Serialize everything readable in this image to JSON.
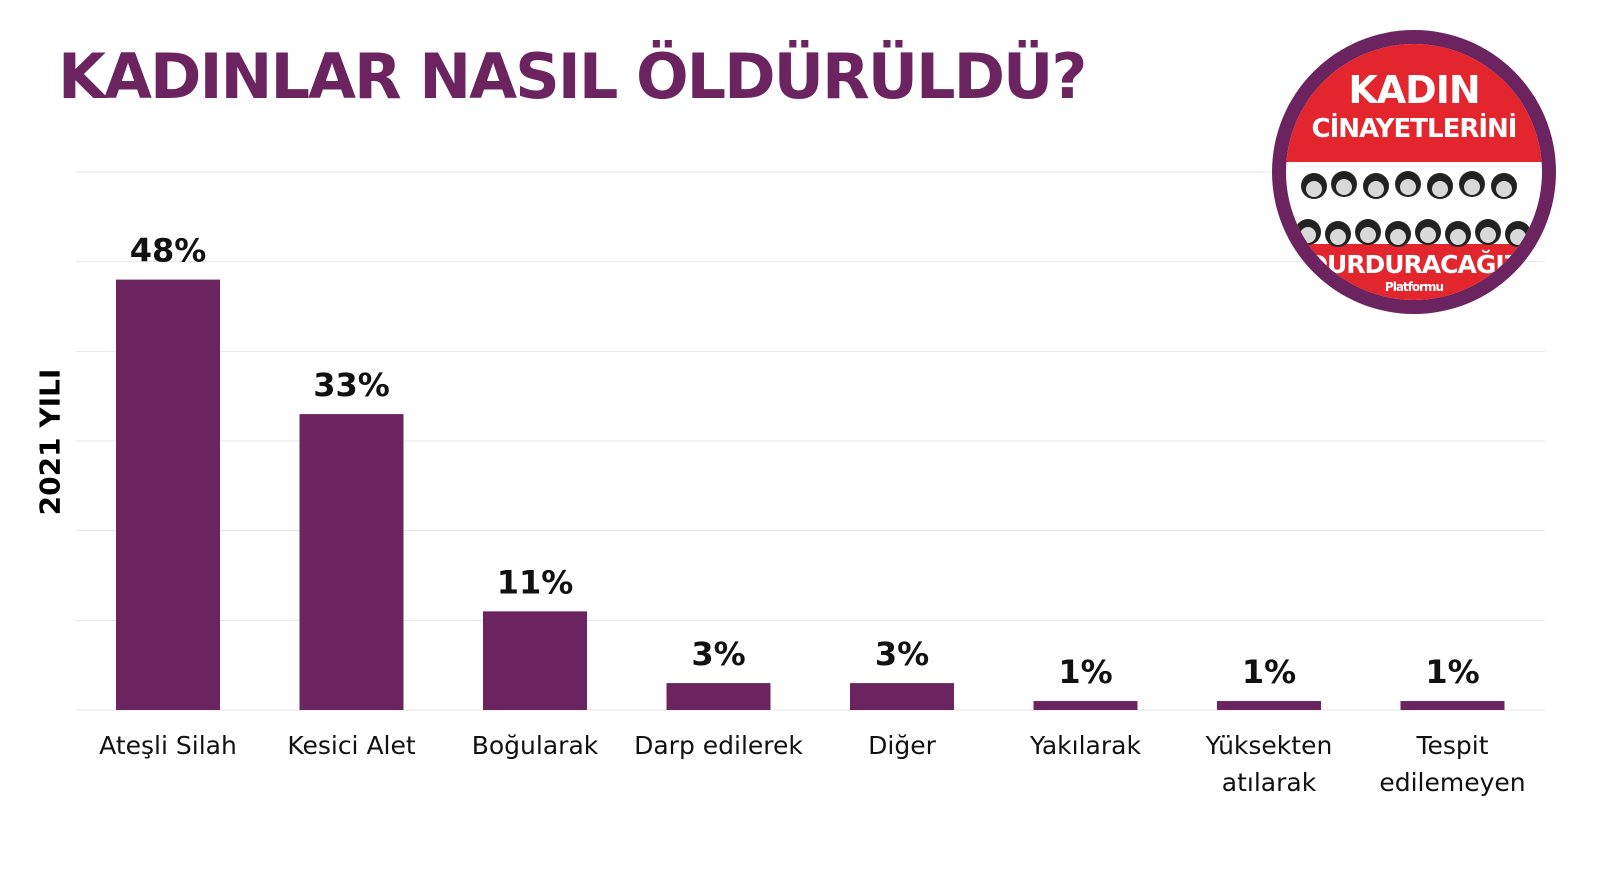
{
  "header": {
    "title": "KADINLAR NASIL ÖLDÜRÜLDÜ?"
  },
  "logo": {
    "line1": "KADIN",
    "line2": "CİNAYETLERİNİ",
    "line3": "DURDURACAĞIZ",
    "line4": "Platformu",
    "colors": {
      "ring": "#6b2460",
      "band": "#e3262d"
    }
  },
  "colors": {
    "title": "#6b2460",
    "bar": "#6b2460",
    "grid": "#e6e6e6"
  },
  "chart_data": {
    "type": "bar",
    "title": "KADINLAR NASIL ÖLDÜRÜLDÜ?",
    "ylabel": "2021 YILI",
    "xlabel": "",
    "categories": [
      "Ateşli Silah",
      "Kesici Alet",
      "Boğularak",
      "Darp edilerek",
      "Diğer",
      "Yakılarak",
      "Yüksekten atılarak",
      "Tespit edilemeyen"
    ],
    "values": [
      48,
      33,
      11,
      3,
      3,
      1,
      1,
      1
    ],
    "value_labels": [
      "48%",
      "33%",
      "11%",
      "3%",
      "3%",
      "1%",
      "1%",
      "1%"
    ],
    "ylim": [
      0,
      60
    ],
    "grid": true,
    "legend": "none"
  }
}
